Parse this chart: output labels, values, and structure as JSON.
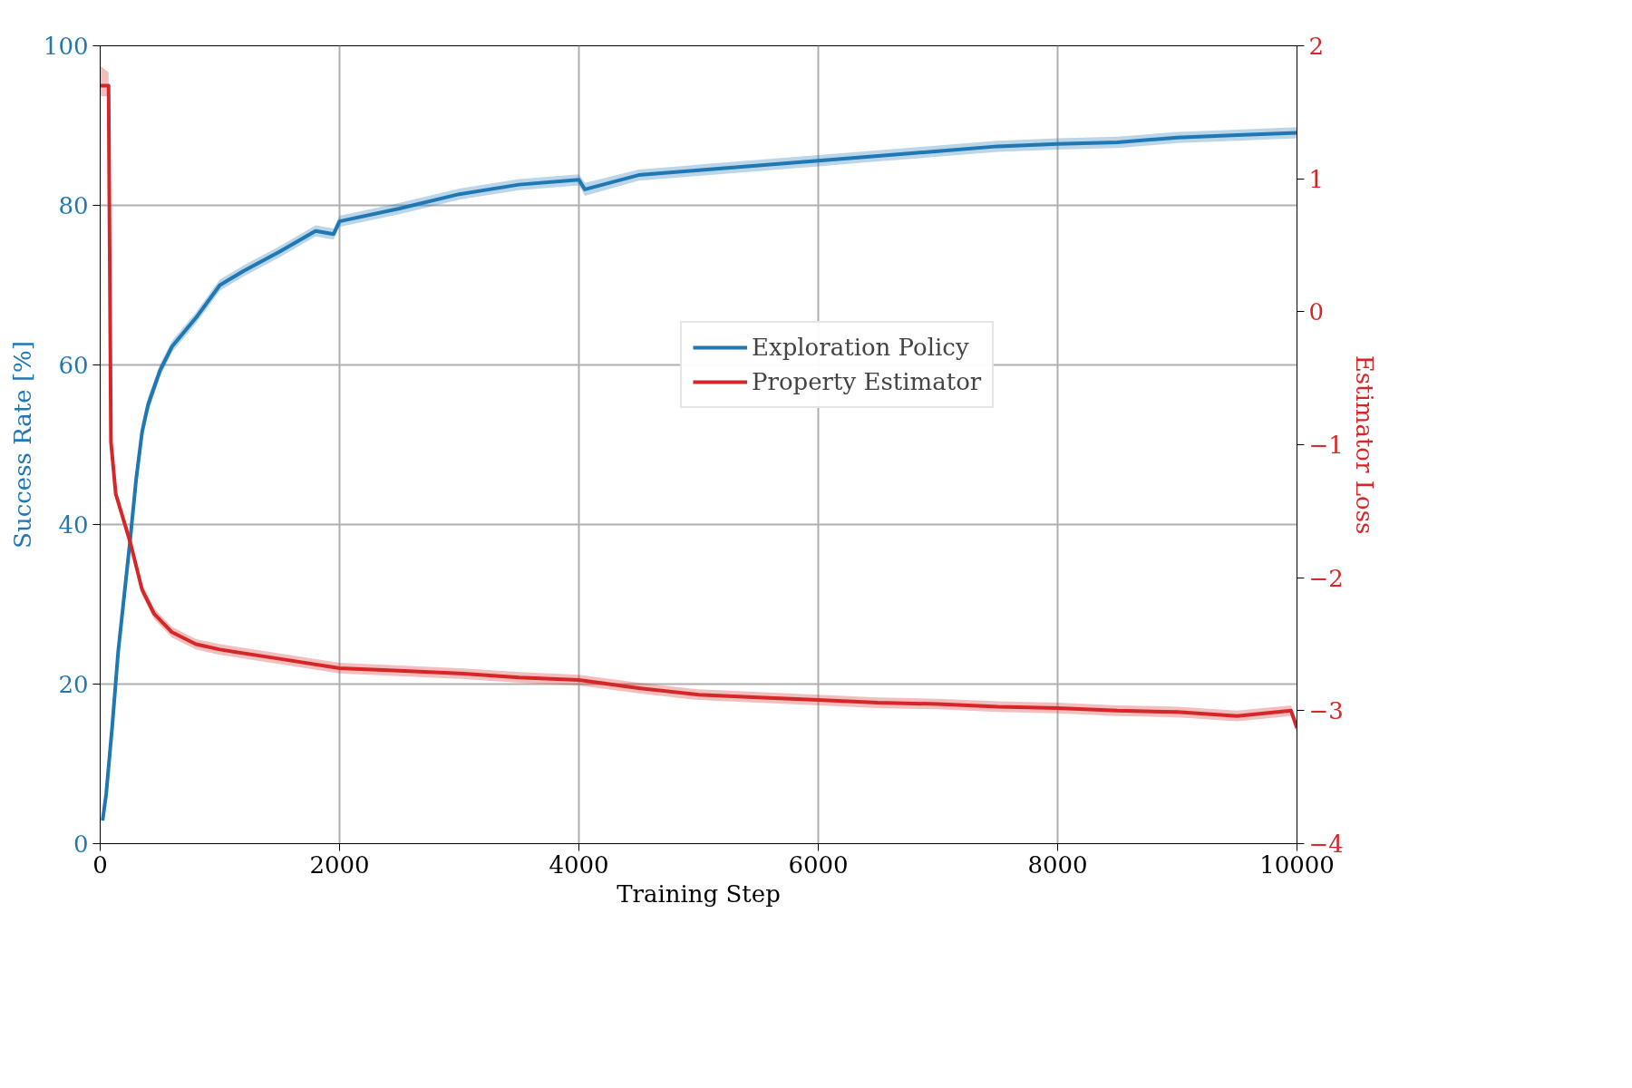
{
  "chart_data": {
    "type": "line",
    "xlabel": "Training Step",
    "ylabel": "Success Rate [%]",
    "y2label": "Estimator Loss",
    "xlim": [
      0,
      10000
    ],
    "xticks": [
      0,
      2000,
      4000,
      6000,
      8000,
      10000
    ],
    "ylim": [
      0,
      100
    ],
    "yticks": [
      0,
      20,
      40,
      60,
      80,
      100
    ],
    "y2lim": [
      -4,
      2
    ],
    "y2ticks": [
      {
        "value": -4,
        "label": "−4"
      },
      {
        "value": -3,
        "label": "−3"
      },
      {
        "value": -2,
        "label": "−2"
      },
      {
        "value": -1,
        "label": "−1"
      },
      0,
      1,
      2
    ],
    "grid": true,
    "legend": "right",
    "line_style": "solid",
    "series": [
      {
        "name": "Exploration Policy",
        "color": "#1f77b4",
        "x": [
          20,
          50,
          100,
          150,
          200,
          250,
          300,
          350,
          400,
          500,
          600,
          800,
          1000,
          1200,
          1500,
          1800,
          1950,
          2000,
          2500,
          3000,
          3500,
          4000,
          4050,
          4500,
          5000,
          5500,
          6000,
          6500,
          7000,
          7500,
          8000,
          8500,
          9000,
          9500,
          10000
        ],
        "values": [
          2.9,
          6.2,
          14.6,
          24,
          31,
          38,
          45.6,
          51.6,
          55,
          59.3,
          62.3,
          65.9,
          70,
          71.8,
          74.2,
          76.8,
          76.4,
          78,
          79.6,
          81.4,
          82.6,
          83.2,
          82,
          83.8,
          84.4,
          85,
          85.6,
          86.2,
          86.8,
          87.4,
          87.7,
          87.9,
          88.5,
          88.8,
          89.1
        ],
        "lower": [
          2.4,
          5.2,
          13.2,
          22.5,
          29.5,
          36.5,
          44.3,
          50.5,
          54,
          58.5,
          61.6,
          65.2,
          69.3,
          71.1,
          73.5,
          76.1,
          75.7,
          77.3,
          78.9,
          80.7,
          81.9,
          82.5,
          81.2,
          83.1,
          83.7,
          84.3,
          84.9,
          85.5,
          86.1,
          86.7,
          87,
          87.2,
          87.8,
          88.1,
          88.4
        ],
        "upper": [
          3.4,
          7.2,
          16,
          25.5,
          32.5,
          39.5,
          46.9,
          52.7,
          56,
          60.1,
          63,
          66.6,
          70.7,
          72.5,
          74.9,
          77.5,
          77.1,
          78.7,
          80.3,
          82.1,
          83.3,
          83.9,
          82.8,
          84.5,
          85.1,
          85.7,
          86.3,
          86.9,
          87.5,
          88.1,
          88.4,
          88.6,
          89.2,
          89.5,
          89.8
        ]
      },
      {
        "name": "Property Estimator",
        "color": "#d62728",
        "axis": "y2",
        "x": [
          0,
          70,
          90,
          130,
          180,
          250,
          350,
          450,
          600,
          800,
          1000,
          1500,
          2000,
          2500,
          3000,
          3500,
          4000,
          4500,
          5000,
          5500,
          6000,
          6500,
          7000,
          7500,
          8000,
          8500,
          9000,
          9500,
          9950,
          10000
        ],
        "values": [
          1.7,
          1.7,
          -0.98,
          -1.37,
          -1.52,
          -1.73,
          -2.09,
          -2.27,
          -2.41,
          -2.5,
          -2.54,
          -2.61,
          -2.68,
          -2.7,
          -2.72,
          -2.75,
          -2.77,
          -2.83,
          -2.88,
          -2.9,
          -2.92,
          -2.94,
          -2.95,
          -2.97,
          -2.98,
          -3.0,
          -3.01,
          -3.04,
          -3.0,
          -3.13
        ],
        "lower": [
          1.62,
          1.62,
          -1.02,
          -1.41,
          -1.56,
          -1.77,
          -2.13,
          -2.31,
          -2.45,
          -2.54,
          -2.58,
          -2.65,
          -2.72,
          -2.74,
          -2.76,
          -2.79,
          -2.81,
          -2.87,
          -2.92,
          -2.94,
          -2.96,
          -2.98,
          -2.99,
          -3.01,
          -3.02,
          -3.04,
          -3.05,
          -3.08,
          -3.04,
          -3.17
        ],
        "upper": [
          1.85,
          1.8,
          -0.94,
          -1.33,
          -1.48,
          -1.69,
          -2.05,
          -2.23,
          -2.37,
          -2.46,
          -2.5,
          -2.57,
          -2.64,
          -2.66,
          -2.68,
          -2.71,
          -2.73,
          -2.79,
          -2.84,
          -2.86,
          -2.88,
          -2.9,
          -2.91,
          -2.93,
          -2.94,
          -2.96,
          -2.97,
          -3.0,
          -2.96,
          -3.09
        ]
      }
    ]
  }
}
